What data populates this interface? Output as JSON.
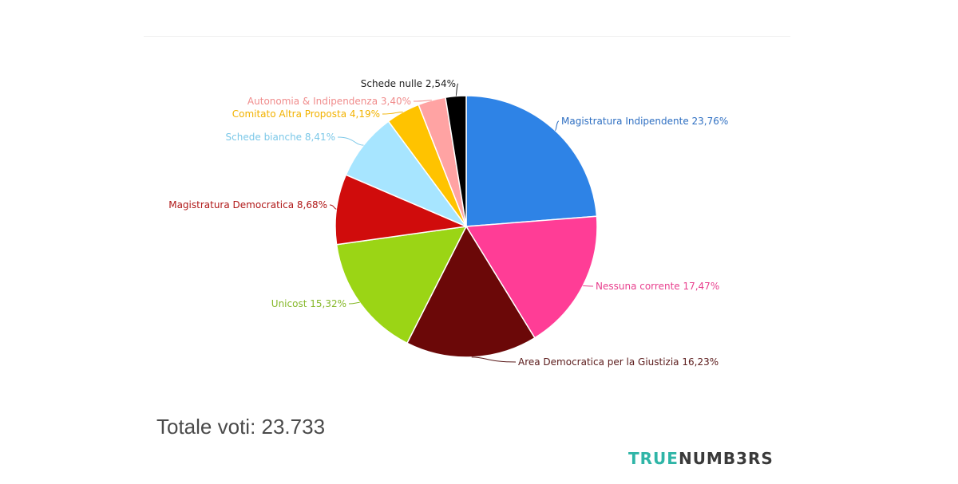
{
  "chart_data": {
    "type": "pie",
    "slices": [
      {
        "label": "Magistratura Indipendente",
        "value_label": "23,76%",
        "value": 23.76,
        "color": "#2e83e6",
        "label_color": "#2e6fc2",
        "side": "right"
      },
      {
        "label": "Nessuna corrente",
        "value_label": "17,47%",
        "value": 17.47,
        "color": "#ff3d96",
        "label_color": "#e8408e",
        "side": "right"
      },
      {
        "label": "Area Democratica per la Giustizia",
        "value_label": "16,23%",
        "value": 16.23,
        "color": "#6b0808",
        "label_color": "#5a1a1a",
        "side": "right"
      },
      {
        "label": "Unicost",
        "value_label": "15,32%",
        "value": 15.32,
        "color": "#9bd515",
        "label_color": "#86b82a",
        "side": "left"
      },
      {
        "label": "Magistratura Democratica",
        "value_label": "8,68%",
        "value": 8.68,
        "color": "#d00c0c",
        "label_color": "#b01818",
        "side": "left"
      },
      {
        "label": "Schede bianche",
        "value_label": "8,41%",
        "value": 8.41,
        "color": "#a7e5ff",
        "label_color": "#7cc8e8",
        "side": "left"
      },
      {
        "label": "Comitato Altra Proposta",
        "value_label": "4,19%",
        "value": 4.19,
        "color": "#ffc300",
        "label_color": "#f2b200",
        "side": "left"
      },
      {
        "label": "Autonomia & Indipendenza",
        "value_label": "3,40%",
        "value": 3.4,
        "color": "#ffa3a3",
        "label_color": "#f08c8c",
        "side": "left"
      },
      {
        "label": "Schede nulle",
        "value_label": "2,54%",
        "value": 2.54,
        "color": "#000000",
        "label_color": "#222222",
        "side": "left"
      }
    ]
  },
  "footer": {
    "total_label": "Totale voti: 23.733",
    "brand_part1": "TRUE",
    "brand_part2": "NUMB3RS"
  }
}
